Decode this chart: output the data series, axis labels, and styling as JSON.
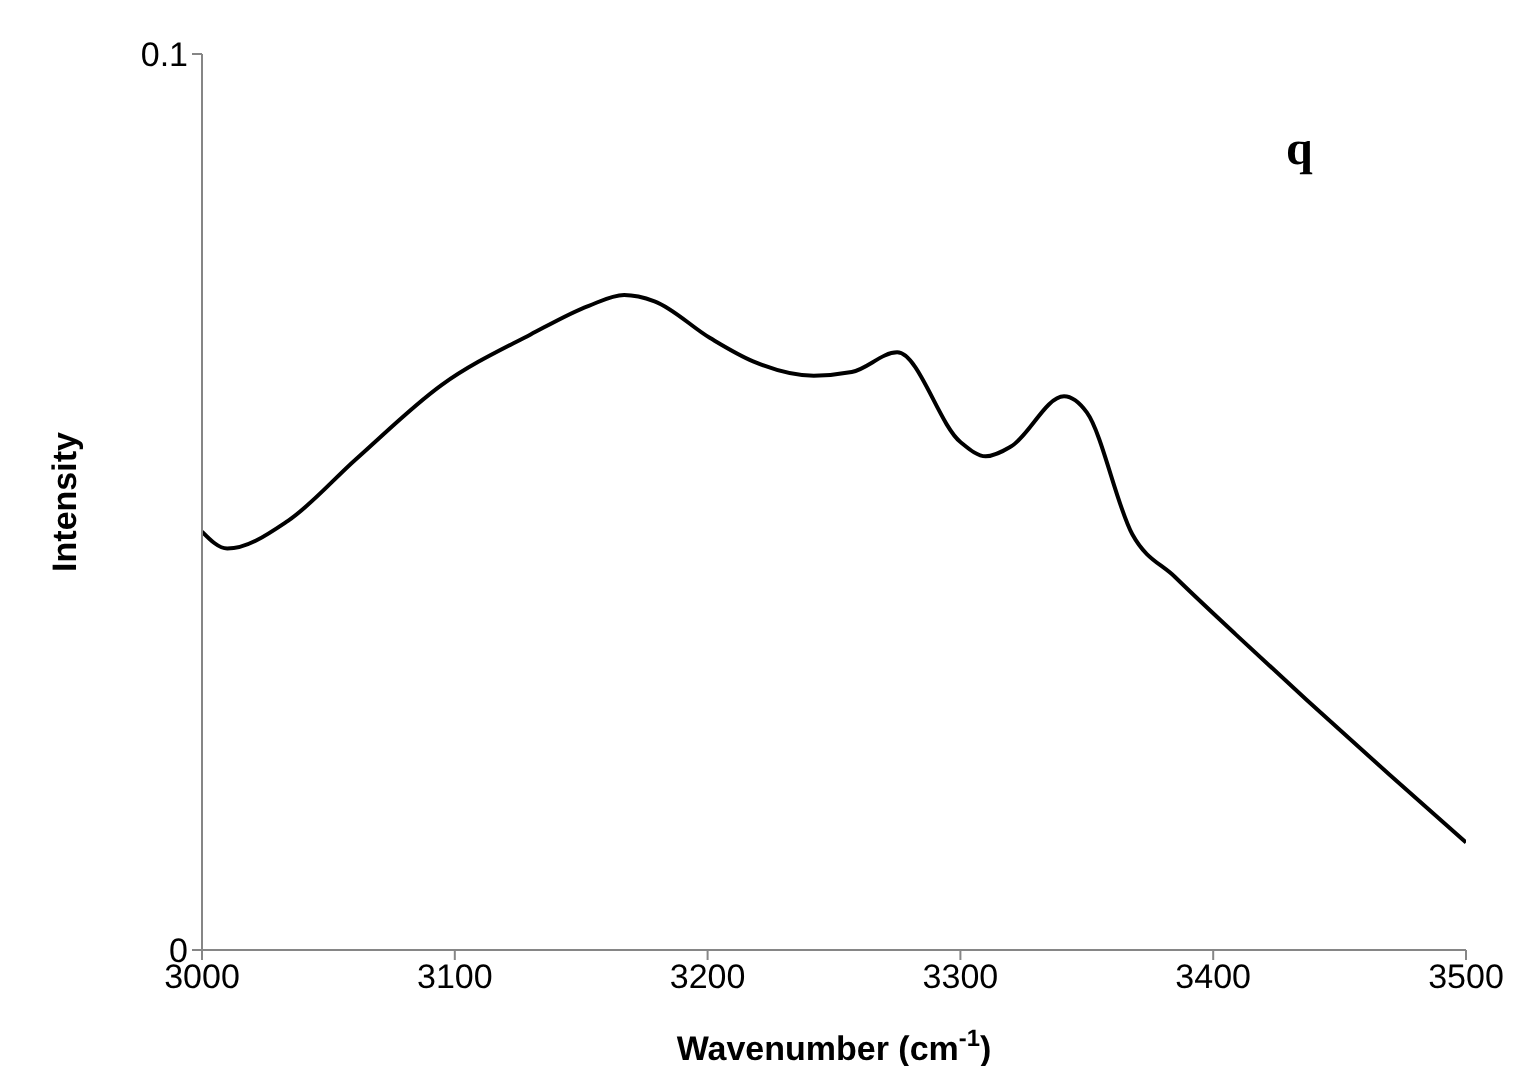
{
  "chart_data": {
    "type": "line",
    "xlabel": "Wavenumber (cm$^{-1}$)",
    "ylabel": "Intensity",
    "annotations": [
      "q"
    ],
    "x": [
      3000,
      3010,
      3034,
      3061,
      3095,
      3130,
      3153,
      3167,
      3179,
      3201,
      3218,
      3242,
      3257,
      3275,
      3300,
      3310,
      3320,
      3341,
      3350,
      3368,
      3385,
      3409,
      3437,
      3470,
      3500
    ],
    "series": [
      {
        "color": "#000000",
        "values": [
          0.0467,
          0.0448,
          0.0479,
          0.0548,
          0.0631,
          0.0687,
          0.0719,
          0.0731,
          0.0724,
          0.0683,
          0.0657,
          0.0641,
          0.0645,
          0.0667,
          0.0567,
          0.0551,
          0.0562,
          0.0618,
          0.06,
          0.0464,
          0.0416,
          0.0352,
          0.0279,
          0.0195,
          0.012
        ]
      }
    ],
    "xlim": [
      3000,
      3500
    ],
    "xticks": [
      3000,
      3100,
      3200,
      3300,
      3400,
      3500
    ],
    "ylim": [
      0,
      0.1
    ],
    "yticks": [
      0,
      0.1
    ],
    "grid": false,
    "legend": false,
    "marker": "none",
    "line_style": "solid"
  }
}
